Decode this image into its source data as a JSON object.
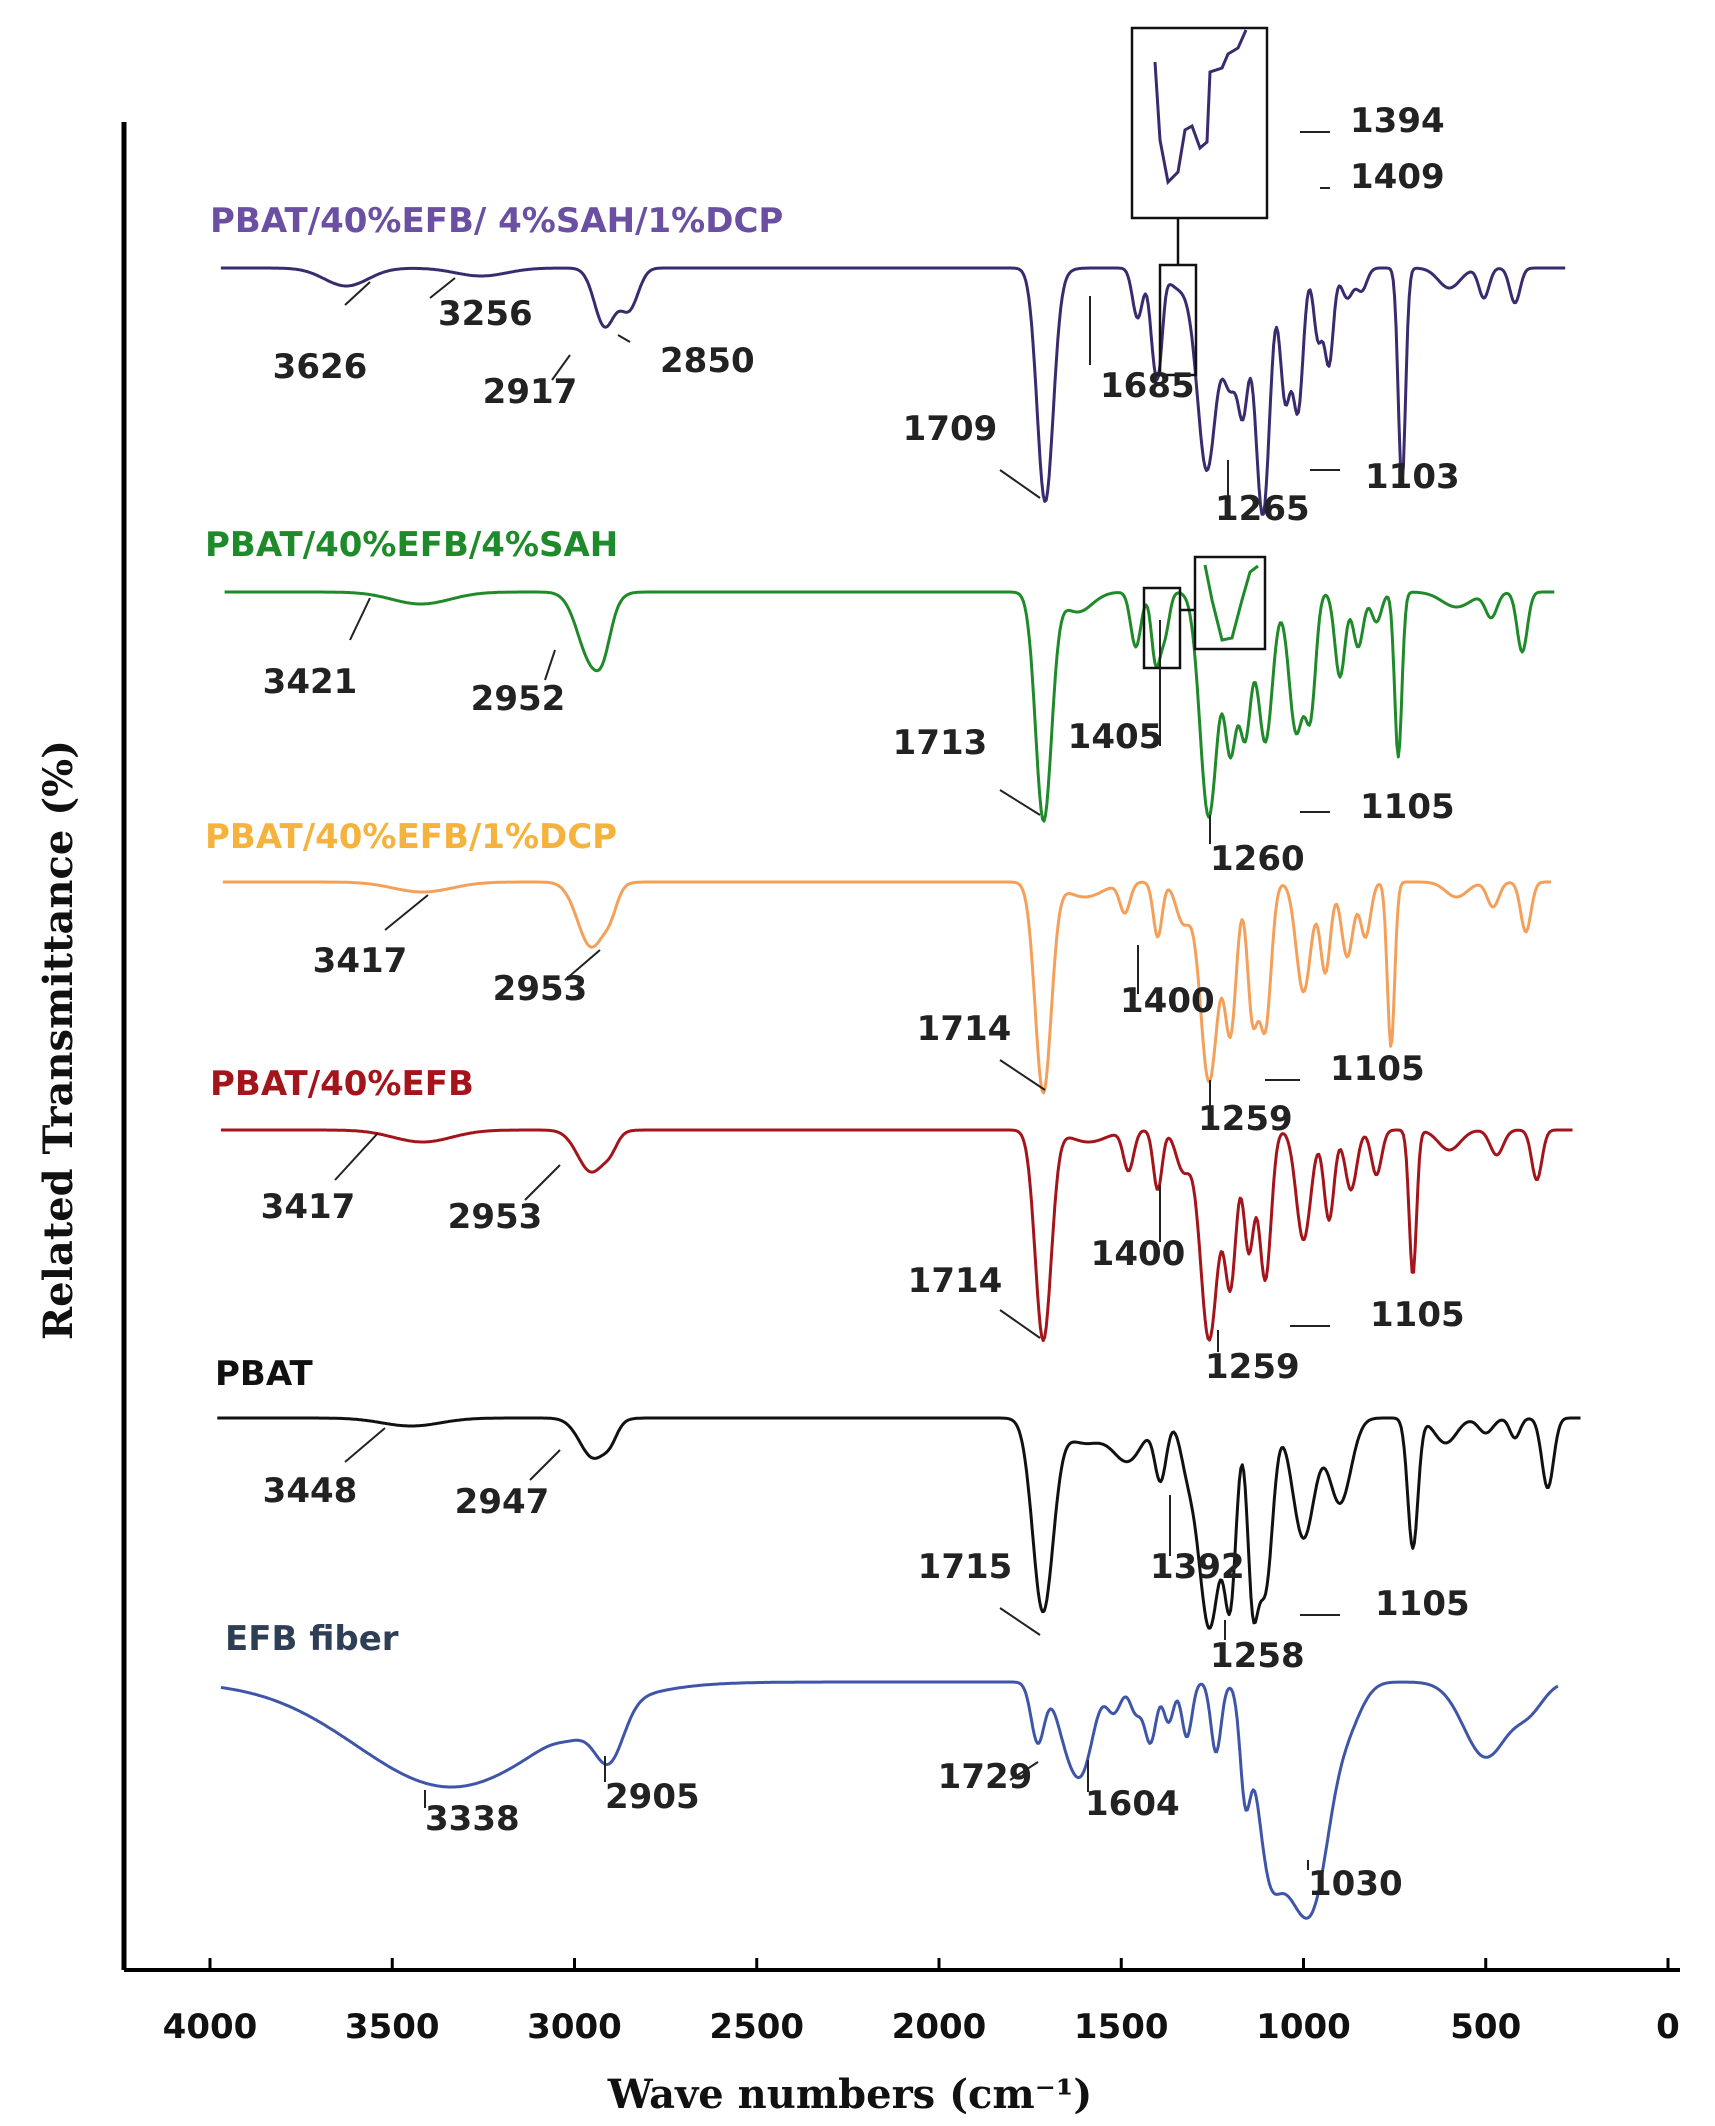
{
  "chart_data": {
    "type": "line",
    "xlabel": "Wave numbers (cm⁻¹)",
    "ylabel": "Related Transmittance (%)",
    "xlim": [
      4000,
      0
    ],
    "x_ticks": [
      4000,
      3500,
      3000,
      2500,
      2000,
      1500,
      1000,
      500,
      0
    ],
    "x_tick_labels": [
      "4000",
      "3500",
      "3000",
      "2500",
      "2000",
      "1500",
      "1000",
      "500",
      "0"
    ],
    "series": [
      {
        "name": "PBAT/40%EFB/ 4%SAH/1%DCP",
        "color": "#3a2a6e",
        "label_color": "#6a4fa3",
        "peaks": [
          {
            "x": 3626,
            "label": "3626"
          },
          {
            "x": 3256,
            "label": "3256"
          },
          {
            "x": 2917,
            "label": "2917"
          },
          {
            "x": 2850,
            "label": "2850"
          },
          {
            "x": 1709,
            "label": "1709"
          },
          {
            "x": 1685,
            "label": "1685"
          },
          {
            "x": 1409,
            "label": "1409"
          },
          {
            "x": 1394,
            "label": "1394"
          },
          {
            "x": 1265,
            "label": "1265"
          },
          {
            "x": 1103,
            "label": "1103"
          }
        ]
      },
      {
        "name": "PBAT/40%EFB/4%SAH",
        "color": "#1f8a2a",
        "label_color": "#1f8a2a",
        "peaks": [
          {
            "x": 3421,
            "label": "3421"
          },
          {
            "x": 2952,
            "label": "2952"
          },
          {
            "x": 1713,
            "label": "1713"
          },
          {
            "x": 1405,
            "label": "1405"
          },
          {
            "x": 1260,
            "label": "1260"
          },
          {
            "x": 1105,
            "label": "1105"
          }
        ]
      },
      {
        "name": "PBAT/40%EFB/1%DCP",
        "color": "#f4a05a",
        "label_color": "#f5b23c",
        "peaks": [
          {
            "x": 3417,
            "label": "3417"
          },
          {
            "x": 2953,
            "label": "2953"
          },
          {
            "x": 1714,
            "label": "1714"
          },
          {
            "x": 1400,
            "label": "1400"
          },
          {
            "x": 1259,
            "label": "1259"
          },
          {
            "x": 1105,
            "label": "1105"
          }
        ]
      },
      {
        "name": "PBAT/40%EFB",
        "color": "#a3151b",
        "label_color": "#a3151b",
        "peaks": [
          {
            "x": 3417,
            "label": "3417"
          },
          {
            "x": 2953,
            "label": "2953"
          },
          {
            "x": 1714,
            "label": "1714"
          },
          {
            "x": 1400,
            "label": "1400"
          },
          {
            "x": 1259,
            "label": "1259"
          },
          {
            "x": 1105,
            "label": "1105"
          }
        ]
      },
      {
        "name": "PBAT",
        "color": "#111111",
        "label_color": "#111111",
        "peaks": [
          {
            "x": 3448,
            "label": "3448"
          },
          {
            "x": 2947,
            "label": "2947"
          },
          {
            "x": 1715,
            "label": "1715"
          },
          {
            "x": 1392,
            "label": "1392"
          },
          {
            "x": 1258,
            "label": "1258"
          },
          {
            "x": 1105,
            "label": "1105"
          }
        ]
      },
      {
        "name": "EFB fiber",
        "color": "#3f55a8",
        "label_color": "#2e3f55",
        "peaks": [
          {
            "x": 3338,
            "label": "3338"
          },
          {
            "x": 2905,
            "label": "2905"
          },
          {
            "x": 1729,
            "label": "1729"
          },
          {
            "x": 1604,
            "label": "1604"
          },
          {
            "x": 1030,
            "label": "1030"
          }
        ]
      }
    ]
  }
}
